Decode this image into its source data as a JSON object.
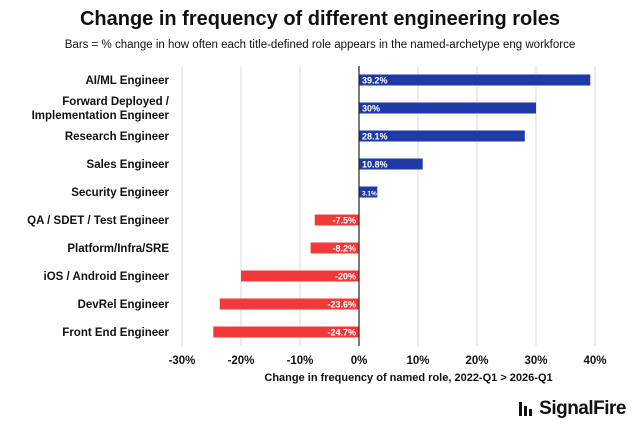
{
  "title": "Change in frequency of different engineering roles",
  "subtitle": "Bars = % change in how often each title-defined role appears in the named-archetype eng workforce",
  "logo_text": "SignalFire",
  "chart_data": {
    "type": "bar",
    "orientation": "horizontal",
    "categories": [
      "AI/ML Engineer",
      "Forward Deployed / Implementation Engineer",
      "Research Engineer",
      "Sales Engineer",
      "Security Engineer",
      "QA / SDET / Test Engineer",
      "Platform/Infra/SRE",
      "iOS / Android Engineer",
      "DevRel Engineer",
      "Front End Engineer"
    ],
    "category_lines": [
      [
        "AI/ML Engineer"
      ],
      [
        "Forward Deployed /",
        "Implementation Engineer"
      ],
      [
        "Research Engineer"
      ],
      [
        "Sales Engineer"
      ],
      [
        "Security Engineer"
      ],
      [
        "QA / SDET / Test Engineer"
      ],
      [
        "Platform/Infra/SRE"
      ],
      [
        "iOS / Android Engineer"
      ],
      [
        "DevRel Engineer"
      ],
      [
        "Front End Engineer"
      ]
    ],
    "values": [
      39.2,
      30,
      28.1,
      10.8,
      3.1,
      -7.5,
      -8.2,
      -20,
      -23.6,
      -24.7
    ],
    "value_labels": [
      "39.2%",
      "30%",
      "28.1%",
      "10.8%",
      "3.1%",
      "-7.5%",
      "-8.2%",
      "-20%",
      "-23.6%",
      "-24.7%"
    ],
    "xlabel": "Change in frequency of named role, 2022-Q1 > 2026-Q1",
    "ylabel": "",
    "xlim": [
      -30,
      40
    ],
    "xticks": [
      -30,
      -20,
      -10,
      0,
      10,
      20,
      30,
      40
    ],
    "xtick_labels": [
      "-30%",
      "-20%",
      "-10%",
      "0%",
      "10%",
      "20%",
      "30%",
      "40%"
    ],
    "grid": "vertical",
    "colors": {
      "positive": "#1f3aa6",
      "negative": "#f03a3a",
      "grid": "#d9d9d9",
      "zero_line": "#222222"
    }
  }
}
